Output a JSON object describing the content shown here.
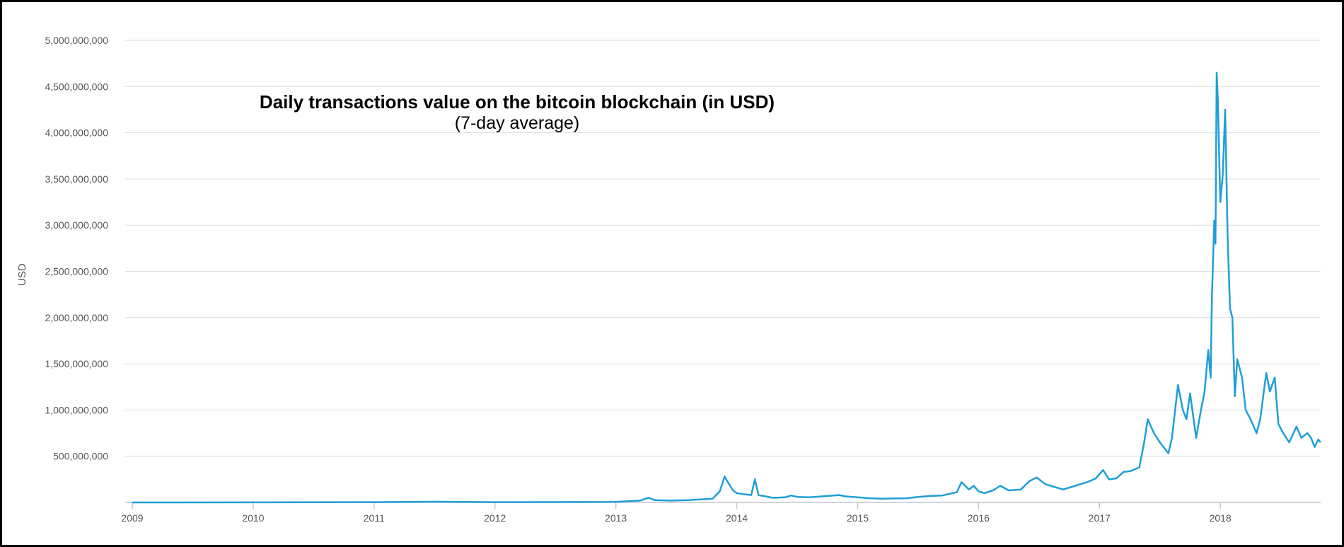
{
  "chart_data": {
    "type": "line",
    "title": "Daily transactions value on the bitcoin blockchain (in USD)",
    "subtitle": "(7-day average)",
    "ylabel": "USD",
    "xlim": [
      2009.0,
      2018.83
    ],
    "ylim": [
      0,
      5000000000
    ],
    "x_ticks": [
      "2009",
      "2010",
      "2011",
      "2012",
      "2013",
      "2014",
      "2015",
      "2016",
      "2017",
      "2018"
    ],
    "x_tick_values": [
      2009,
      2010,
      2011,
      2012,
      2013,
      2014,
      2015,
      2016,
      2017,
      2018
    ],
    "y_ticks": [
      "500,000,000",
      "1,000,000,000",
      "1,500,000,000",
      "2,000,000,000",
      "2,500,000,000",
      "3,000,000,000",
      "3,500,000,000",
      "4,000,000,000",
      "4,500,000,000",
      "5,000,000,000"
    ],
    "y_tick_values": [
      500000000,
      1000000000,
      1500000000,
      2000000000,
      2500000000,
      3000000000,
      3500000000,
      4000000000,
      4500000000,
      5000000000
    ],
    "grid": true,
    "legend": "none",
    "color": "#1f9fd6",
    "series": [
      {
        "x": [
          2009.0,
          2010.0,
          2011.0,
          2011.5,
          2012.0,
          2012.5,
          2013.0,
          2013.2,
          2013.27,
          2013.32,
          2013.45,
          2013.6,
          2013.8,
          2013.86,
          2013.9,
          2013.93,
          2013.97,
          2014.0,
          2014.05,
          2014.12,
          2014.15,
          2014.18,
          2014.22,
          2014.3,
          2014.4,
          2014.45,
          2014.5,
          2014.6,
          2014.7,
          2014.8,
          2014.85,
          2014.9,
          2015.0,
          2015.1,
          2015.2,
          2015.4,
          2015.5,
          2015.6,
          2015.7,
          2015.82,
          2015.86,
          2015.92,
          2015.96,
          2016.0,
          2016.05,
          2016.12,
          2016.18,
          2016.25,
          2016.35,
          2016.42,
          2016.48,
          2016.55,
          2016.62,
          2016.7,
          2016.8,
          2016.9,
          2016.97,
          2017.03,
          2017.08,
          2017.14,
          2017.2,
          2017.26,
          2017.33,
          2017.37,
          2017.4,
          2017.45,
          2017.5,
          2017.53,
          2017.57,
          2017.6,
          2017.65,
          2017.69,
          2017.72,
          2017.75,
          2017.8,
          2017.84,
          2017.87,
          2017.9,
          2017.92,
          2017.93,
          2017.95,
          2017.96,
          2017.97,
          2017.98,
          2018.0,
          2018.02,
          2018.04,
          2018.06,
          2018.08,
          2018.1,
          2018.12,
          2018.14,
          2018.18,
          2018.21,
          2018.25,
          2018.3,
          2018.33,
          2018.38,
          2018.41,
          2018.45,
          2018.48,
          2018.52,
          2018.57,
          2018.63,
          2018.67,
          2018.72,
          2018.75,
          2018.78,
          2018.81,
          2018.83
        ],
        "values": [
          0,
          1000000,
          3000000,
          8000000,
          3000000,
          4000000,
          6000000,
          20000000,
          50000000,
          25000000,
          20000000,
          25000000,
          40000000,
          120000000,
          280000000,
          210000000,
          130000000,
          100000000,
          90000000,
          80000000,
          250000000,
          80000000,
          70000000,
          50000000,
          55000000,
          75000000,
          60000000,
          55000000,
          65000000,
          75000000,
          80000000,
          65000000,
          55000000,
          45000000,
          40000000,
          45000000,
          60000000,
          70000000,
          75000000,
          110000000,
          220000000,
          140000000,
          180000000,
          120000000,
          100000000,
          130000000,
          180000000,
          130000000,
          140000000,
          230000000,
          270000000,
          200000000,
          170000000,
          140000000,
          180000000,
          220000000,
          260000000,
          350000000,
          250000000,
          260000000,
          330000000,
          340000000,
          380000000,
          650000000,
          900000000,
          750000000,
          650000000,
          600000000,
          530000000,
          700000000,
          1270000000,
          1000000000,
          900000000,
          1180000000,
          700000000,
          1000000000,
          1200000000,
          1650000000,
          1350000000,
          2200000000,
          3050000000,
          2800000000,
          4650000000,
          4350000000,
          3250000000,
          3550000000,
          4250000000,
          2900000000,
          2100000000,
          2000000000,
          1150000000,
          1550000000,
          1350000000,
          1000000000,
          900000000,
          750000000,
          900000000,
          1400000000,
          1200000000,
          1350000000,
          850000000,
          750000000,
          650000000,
          820000000,
          700000000,
          750000000,
          700000000,
          600000000,
          680000000,
          650000000
        ]
      }
    ]
  }
}
